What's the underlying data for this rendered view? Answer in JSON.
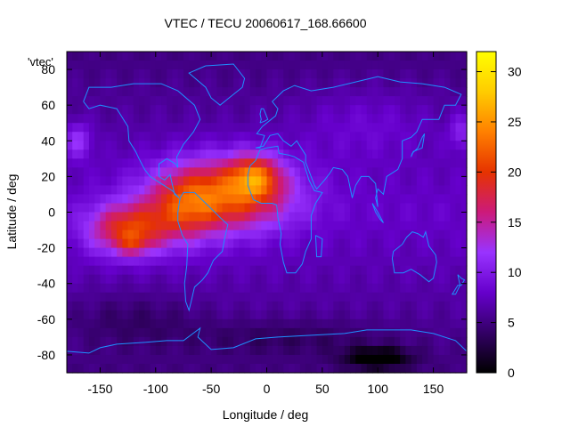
{
  "chart_data": {
    "type": "heatmap",
    "title": "VTEC / TECU 20060617_168.66600",
    "xlabel": "Longitude / deg",
    "ylabel": "Latitude / deg",
    "legend_label": "'vtec'",
    "xlim": [
      -180,
      180
    ],
    "ylim": [
      -90,
      90
    ],
    "zlim": [
      0,
      32
    ],
    "x_ticks": [
      -150,
      -100,
      -50,
      0,
      50,
      100,
      150
    ],
    "y_ticks": [
      -80,
      -60,
      -40,
      -20,
      0,
      20,
      40,
      60,
      80
    ],
    "colorbar_ticks": [
      0,
      5,
      10,
      15,
      20,
      25,
      30
    ],
    "grid": false,
    "colormap": [
      "#000000",
      "#330066",
      "#6600cc",
      "#9933ff",
      "#cc1a7a",
      "#e63300",
      "#ff8000",
      "#ffcc00",
      "#ffff00"
    ],
    "coastline_color": "#1e90ff",
    "background_level": 8,
    "features": [
      {
        "lon": -40,
        "lat": 10,
        "slon": 60,
        "slat": 20,
        "amp": 14
      },
      {
        "lon": -10,
        "lat": 20,
        "slon": 22,
        "slat": 12,
        "amp": 10
      },
      {
        "lon": -125,
        "lat": -10,
        "slon": 35,
        "slat": 14,
        "amp": 12
      },
      {
        "lon": -75,
        "lat": 0,
        "slon": 30,
        "slat": 18,
        "amp": 6
      },
      {
        "lon": -120,
        "lat": -18,
        "slon": 12,
        "slat": 6,
        "amp": 4
      },
      {
        "lon": -170,
        "lat": 40,
        "slon": 12,
        "slat": 10,
        "amp": 5
      },
      {
        "lon": 175,
        "lat": 45,
        "slon": 10,
        "slat": 10,
        "amp": 4
      },
      {
        "lon": 90,
        "lat": 50,
        "slon": 60,
        "slat": 20,
        "amp": 2
      },
      {
        "lon": 100,
        "lat": -82,
        "slon": 30,
        "slat": 6,
        "amp": -7
      },
      {
        "lon": 20,
        "lat": -70,
        "slon": 90,
        "slat": 10,
        "amp": -2
      },
      {
        "lon": -120,
        "lat": -60,
        "slon": 60,
        "slat": 15,
        "amp": -2
      }
    ]
  }
}
